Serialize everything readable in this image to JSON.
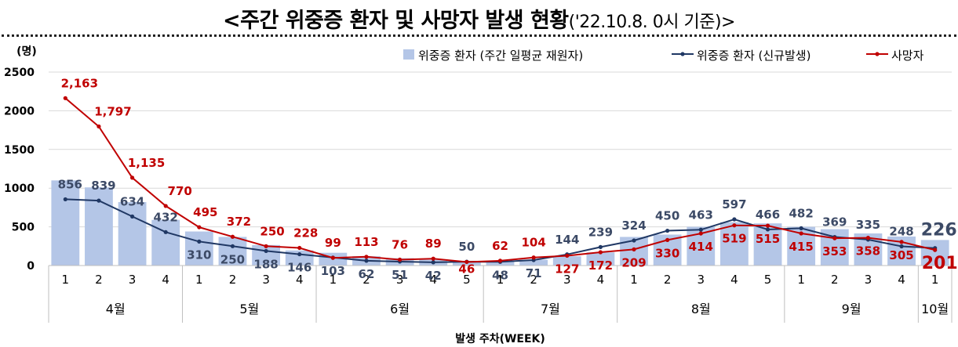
{
  "title_main": "<주간 위중증 환자 및 사망자 발생 현황",
  "title_sub": "('22.10.8. 0시 기준)>",
  "chart_data": {
    "type": "bar",
    "unit_label": "(명)",
    "xlabel": "발생 주차(WEEK)",
    "ylim": [
      0,
      2500
    ],
    "yticks": [
      0,
      500,
      1000,
      1500,
      2000,
      2500
    ],
    "grid": true,
    "legend_position": "top-right",
    "categories": [
      "1",
      "2",
      "3",
      "4",
      "1",
      "2",
      "3",
      "4",
      "1",
      "2",
      "3",
      "4",
      "5",
      "1",
      "2",
      "3",
      "4",
      "1",
      "2",
      "3",
      "4",
      "5",
      "1",
      "2",
      "3",
      "4",
      "1"
    ],
    "months": [
      {
        "label": "4월",
        "count": 4
      },
      {
        "label": "5월",
        "count": 4
      },
      {
        "label": "6월",
        "count": 5
      },
      {
        "label": "7월",
        "count": 4
      },
      {
        "label": "8월",
        "count": 5
      },
      {
        "label": "9월",
        "count": 4
      },
      {
        "label": "10월",
        "count": 1
      }
    ],
    "series": [
      {
        "name": "위중증 환자 (주간 일평균 재원자)",
        "type": "bar",
        "color": "#b4c6e7",
        "values": [
          1100,
          1010,
          820,
          590,
          440,
          370,
          265,
          195,
          165,
          120,
          95,
          75,
          55,
          55,
          75,
          120,
          170,
          370,
          400,
          500,
          560,
          545,
          500,
          470,
          415,
          375,
          330
        ]
      },
      {
        "name": "위중증 환자 (신규발생)",
        "type": "line",
        "color": "#203864",
        "values": [
          856,
          839,
          634,
          432,
          310,
          250,
          188,
          146,
          103,
          62,
          51,
          42,
          50,
          48,
          71,
          144,
          239,
          324,
          450,
          463,
          597,
          466,
          482,
          369,
          335,
          248,
          226
        ]
      },
      {
        "name": "사망자",
        "type": "line",
        "color": "#c00000",
        "values": [
          2163,
          1797,
          1135,
          770,
          495,
          372,
          250,
          228,
          99,
          113,
          76,
          89,
          46,
          62,
          104,
          127,
          172,
          209,
          330,
          414,
          519,
          515,
          415,
          353,
          358,
          305,
          201
        ]
      }
    ],
    "blue_labels": [
      "856",
      "839",
      "634",
      "432",
      "310",
      "250",
      "188",
      "146",
      "103",
      "62",
      "51",
      "42",
      "50",
      "48",
      "71",
      "144",
      "239",
      "324",
      "450",
      "463",
      "597",
      "466",
      "482",
      "369",
      "335",
      "248",
      "226"
    ],
    "red_labels": [
      "2,163",
      "1,797",
      "1,135",
      "770",
      "495",
      "372",
      "250",
      "228",
      "99",
      "113",
      "76",
      "89",
      "46",
      "62",
      "104",
      "127",
      "172",
      "209",
      "330",
      "414",
      "519",
      "515",
      "415",
      "353",
      "358",
      "305",
      "201"
    ]
  }
}
